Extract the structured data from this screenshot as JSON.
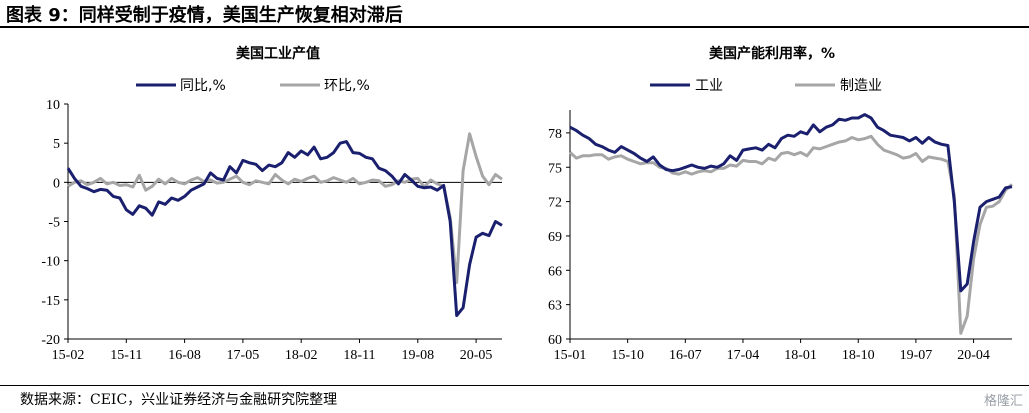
{
  "figure": {
    "title": "图表 9：同样受制于疫情，美国生产恢复相对滞后",
    "source": "数据来源：CEIC，兴业证券经济与金融研究院整理",
    "watermark": "格隆汇"
  },
  "colors": {
    "navy": "#1a1f6e",
    "gray": "#a6a6a6",
    "axis": "#000000"
  },
  "chart_data": [
    {
      "type": "line",
      "title": "美国工业产值",
      "x_ticks": [
        "15-02",
        "15-11",
        "16-08",
        "17-05",
        "18-02",
        "18-11",
        "19-08",
        "20-05"
      ],
      "x_tick_index": [
        0,
        9,
        18,
        27,
        36,
        45,
        54,
        63
      ],
      "ylim": [
        -20,
        10
      ],
      "y_ticks": [
        10,
        5,
        0,
        -5,
        -10,
        -15,
        -20
      ],
      "legend_position": "top",
      "series": [
        {
          "name": "同比,%",
          "color": "#1a1f6e",
          "values": [
            1.8,
            0.5,
            -0.5,
            -0.8,
            -1.2,
            -0.9,
            -1.0,
            -1.8,
            -2.0,
            -3.5,
            -4.1,
            -3.0,
            -3.3,
            -4.2,
            -2.5,
            -2.8,
            -2.0,
            -2.3,
            -1.8,
            -1.0,
            -0.6,
            -0.2,
            1.2,
            0.5,
            0.3,
            2.0,
            1.2,
            2.8,
            2.5,
            2.3,
            1.5,
            2.2,
            2.0,
            2.5,
            3.8,
            3.2,
            4.0,
            3.5,
            4.5,
            3.0,
            3.2,
            3.8,
            5.0,
            5.2,
            3.8,
            3.7,
            3.2,
            3.0,
            1.8,
            1.5,
            0.8,
            -0.2,
            1.0,
            0.3,
            -0.5,
            -0.7,
            -0.6,
            -1.0,
            -0.4,
            -5.0,
            -17.0,
            -16.0,
            -10.5,
            -7.0,
            -6.5,
            -6.8,
            -5.0,
            -5.5
          ]
        },
        {
          "name": "环比,%",
          "color": "#a6a6a6",
          "values": [
            -0.5,
            0.0,
            0.2,
            -0.3,
            0.0,
            0.5,
            -0.2,
            0.0,
            -0.4,
            -0.3,
            -0.6,
            0.9,
            -1.0,
            -0.5,
            0.4,
            -0.2,
            0.5,
            0.0,
            -0.2,
            0.3,
            0.6,
            0.1,
            0.3,
            -0.1,
            0.0,
            0.4,
            0.8,
            0.0,
            -0.3,
            0.2,
            0.0,
            -0.2,
            1.0,
            0.3,
            -0.2,
            0.4,
            0.1,
            0.5,
            0.8,
            0.0,
            0.2,
            0.6,
            0.3,
            0.0,
            0.5,
            -0.2,
            0.0,
            0.3,
            0.2,
            -0.5,
            -0.3,
            0.2,
            0.0,
            0.4,
            0.5,
            -0.6,
            0.3,
            -0.2,
            -0.5,
            -4.5,
            -12.8,
            1.5,
            6.2,
            3.3,
            0.8,
            -0.3,
            1.0,
            0.4
          ]
        }
      ]
    },
    {
      "type": "line",
      "title": "美国产能利用率，%",
      "x_ticks": [
        "15-01",
        "15-10",
        "16-07",
        "17-04",
        "18-01",
        "18-10",
        "19-07",
        "20-04"
      ],
      "x_tick_index": [
        0,
        9,
        18,
        27,
        36,
        45,
        54,
        63
      ],
      "ylim": [
        60,
        80
      ],
      "y_ticks": [
        78,
        75,
        72,
        69,
        66,
        63,
        60
      ],
      "legend_position": "top",
      "series": [
        {
          "name": "工业",
          "color": "#1a1f6e",
          "values": [
            78.5,
            78.2,
            77.8,
            77.5,
            77.0,
            76.8,
            76.5,
            76.3,
            76.8,
            76.5,
            76.2,
            75.8,
            75.5,
            75.9,
            75.2,
            74.8,
            74.7,
            74.8,
            75.0,
            75.2,
            75.0,
            74.9,
            75.1,
            75.0,
            75.3,
            76.0,
            75.6,
            76.5,
            76.6,
            76.7,
            76.5,
            77.0,
            76.7,
            77.5,
            77.8,
            77.7,
            78.1,
            77.9,
            78.7,
            78.1,
            78.5,
            78.7,
            79.2,
            79.1,
            79.3,
            79.3,
            79.6,
            79.3,
            78.5,
            78.2,
            77.8,
            77.7,
            77.6,
            77.3,
            77.6,
            77.1,
            77.6,
            77.2,
            77.0,
            76.9,
            72.0,
            64.2,
            64.8,
            68.5,
            71.5,
            72.0,
            72.2,
            72.4,
            73.2,
            73.3
          ]
        },
        {
          "name": "制造业",
          "color": "#a6a6a6",
          "values": [
            76.3,
            75.8,
            76.0,
            76.0,
            76.1,
            76.1,
            75.7,
            75.9,
            76.0,
            75.7,
            75.5,
            75.3,
            75.4,
            75.4,
            75.0,
            74.9,
            74.5,
            74.4,
            74.6,
            74.4,
            74.6,
            74.7,
            74.6,
            74.9,
            74.9,
            75.2,
            75.1,
            75.6,
            75.5,
            75.5,
            75.3,
            75.8,
            75.6,
            76.2,
            76.3,
            76.1,
            76.3,
            76.0,
            76.7,
            76.6,
            76.8,
            77.0,
            77.2,
            77.3,
            77.6,
            77.4,
            77.5,
            77.7,
            77.0,
            76.5,
            76.3,
            76.1,
            75.8,
            75.9,
            76.2,
            75.5,
            75.9,
            75.8,
            75.7,
            75.5,
            72.5,
            60.5,
            62.0,
            67.0,
            70.0,
            71.5,
            71.6,
            72.0,
            73.0,
            73.5
          ]
        }
      ]
    }
  ]
}
